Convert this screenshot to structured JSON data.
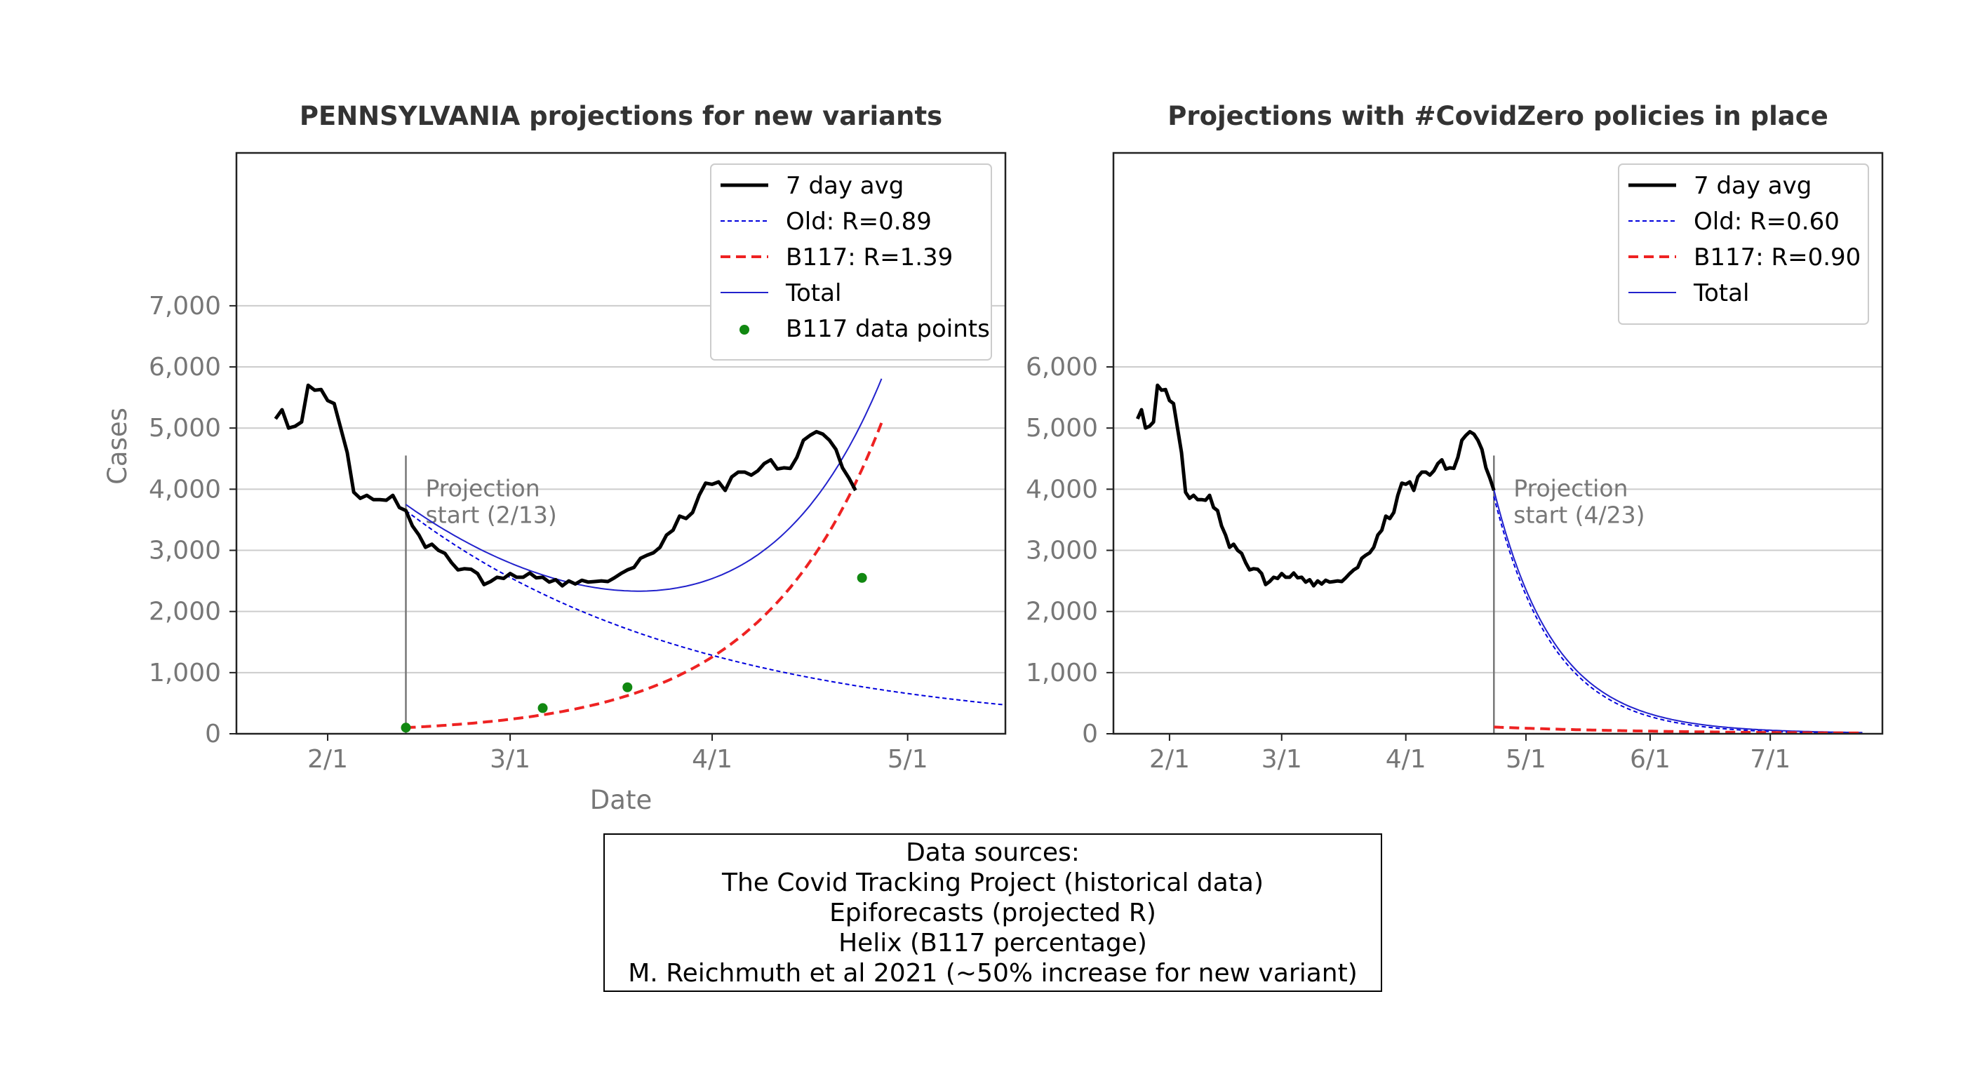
{
  "chart_data": [
    {
      "type": "line",
      "title": "PENNSYLVANIA projections for new variants",
      "xlabel": "Date",
      "ylabel": "Cases",
      "x_ticks": [
        "2/1",
        "3/1",
        "4/1",
        "5/1"
      ],
      "x_tick_values": [
        "2021-02-01",
        "2021-03-01",
        "2021-04-01",
        "2021-05-01"
      ],
      "xlim": [
        "2021-01-18",
        "2021-05-16"
      ],
      "y_ticks": [
        "0",
        "1,000",
        "2,000",
        "3,000",
        "4,000",
        "5,000",
        "6,000",
        "7,000"
      ],
      "y_tick_values": [
        0,
        1000,
        2000,
        3000,
        4000,
        5000,
        6000,
        7000
      ],
      "ylim": [
        0,
        9500
      ],
      "grid": "horizontal",
      "legend_position": "top-right",
      "annotation": "Projection\nstart (2/13)",
      "projection_start": "2021-02-13",
      "series": [
        {
          "name": "7 day avg",
          "style": "solid-thick",
          "color": "#000000",
          "x": [
            "2021-01-24",
            "2021-01-25",
            "2021-01-26",
            "2021-01-27",
            "2021-01-28",
            "2021-01-29",
            "2021-01-30",
            "2021-01-31",
            "2021-02-01",
            "2021-02-02",
            "2021-02-03",
            "2021-02-04",
            "2021-02-05",
            "2021-02-06",
            "2021-02-07",
            "2021-02-08",
            "2021-02-09",
            "2021-02-10",
            "2021-02-11",
            "2021-02-12",
            "2021-02-13",
            "2021-02-14",
            "2021-02-15",
            "2021-02-16",
            "2021-02-17",
            "2021-02-18",
            "2021-02-19",
            "2021-02-20",
            "2021-02-21",
            "2021-02-22",
            "2021-02-23",
            "2021-02-24",
            "2021-02-25",
            "2021-02-26",
            "2021-02-27",
            "2021-02-28",
            "2021-03-01",
            "2021-03-02",
            "2021-03-03",
            "2021-03-04",
            "2021-03-05",
            "2021-03-06",
            "2021-03-07",
            "2021-03-08",
            "2021-03-09",
            "2021-03-10",
            "2021-03-11",
            "2021-03-12",
            "2021-03-13",
            "2021-03-14",
            "2021-03-15",
            "2021-03-16",
            "2021-03-17",
            "2021-03-18",
            "2021-03-19",
            "2021-03-20",
            "2021-03-21",
            "2021-03-22",
            "2021-03-23",
            "2021-03-24",
            "2021-03-25",
            "2021-03-26",
            "2021-03-27",
            "2021-03-28",
            "2021-03-29",
            "2021-03-30",
            "2021-03-31",
            "2021-04-01",
            "2021-04-02",
            "2021-04-03",
            "2021-04-04",
            "2021-04-05",
            "2021-04-06",
            "2021-04-07",
            "2021-04-08",
            "2021-04-09",
            "2021-04-10",
            "2021-04-11",
            "2021-04-12",
            "2021-04-13",
            "2021-04-14",
            "2021-04-15",
            "2021-04-16",
            "2021-04-17",
            "2021-04-18",
            "2021-04-19",
            "2021-04-20",
            "2021-04-21",
            "2021-04-22",
            "2021-04-23"
          ],
          "y": [
            5150,
            5300,
            5000,
            5030,
            5100,
            5700,
            5620,
            5630,
            5450,
            5400,
            5000,
            4600,
            3950,
            3850,
            3900,
            3830,
            3830,
            3820,
            3900,
            3700,
            3650,
            3400,
            3250,
            3050,
            3100,
            3000,
            2950,
            2800,
            2680,
            2700,
            2690,
            2620,
            2440,
            2490,
            2560,
            2540,
            2620,
            2560,
            2560,
            2630,
            2550,
            2560,
            2480,
            2520,
            2420,
            2500,
            2450,
            2510,
            2480,
            2490,
            2500,
            2490,
            2550,
            2620,
            2680,
            2720,
            2870,
            2920,
            2960,
            3050,
            3250,
            3330,
            3560,
            3520,
            3620,
            3900,
            4100,
            4080,
            4120,
            3980,
            4200,
            4280,
            4280,
            4230,
            4300,
            4420,
            4480,
            4330,
            4350,
            4340,
            4520,
            4800,
            4880,
            4940,
            4900,
            4800,
            4650,
            4350,
            4180,
            3980
          ]
        },
        {
          "name": "Old: R=0.89",
          "style": "dotted-thin",
          "color": "#0000dd",
          "x_start": "2021-02-13",
          "x_end": "2021-05-16",
          "y_start": 3650,
          "y_end": 480,
          "daily_factor": 0.978
        },
        {
          "name": "B117: R=1.39",
          "style": "dashed-thick",
          "color": "#ee2222",
          "x_start": "2021-02-13",
          "x_end": "2021-04-27",
          "y_start": 100,
          "y_end": 5100,
          "daily_factor": 1.0553
        },
        {
          "name": "Total",
          "style": "solid-thin",
          "color": "#2222cc",
          "description_from_components": true,
          "x_start": "2021-02-13",
          "x_end": "2021-04-27"
        },
        {
          "name": "B117 data points",
          "style": "markers",
          "color": "#118811",
          "x": [
            "2021-02-13",
            "2021-03-06",
            "2021-03-19",
            "2021-04-24"
          ],
          "y": [
            100,
            420,
            760,
            2550
          ]
        }
      ]
    },
    {
      "type": "line",
      "title": "Projections with #CovidZero policies in place",
      "xlabel": "",
      "ylabel": "",
      "x_ticks": [
        "2/1",
        "3/1",
        "4/1",
        "5/1",
        "6/1",
        "7/1"
      ],
      "x_tick_values": [
        "2021-02-01",
        "2021-03-01",
        "2021-04-01",
        "2021-05-01",
        "2021-06-01",
        "2021-07-01"
      ],
      "xlim": [
        "2021-01-18",
        "2021-07-29"
      ],
      "y_ticks": [
        "0",
        "1,000",
        "2,000",
        "3,000",
        "4,000",
        "5,000",
        "6,000"
      ],
      "y_tick_values": [
        0,
        1000,
        2000,
        3000,
        4000,
        5000,
        6000
      ],
      "ylim": [
        0,
        9500
      ],
      "grid": "horizontal",
      "legend_position": "top-right",
      "annotation": "Projection\nstart (4/23)",
      "projection_start": "2021-04-23",
      "series": [
        {
          "name": "7 day avg",
          "style": "solid-thick",
          "color": "#000000",
          "same_as_first_chart": true
        },
        {
          "name": "Old: R=0.60",
          "style": "dotted-thin",
          "color": "#0000dd",
          "x_start": "2021-04-23",
          "x_end": "2021-07-24",
          "y_start": 3880,
          "y_end": 0,
          "daily_factor": 0.935
        },
        {
          "name": "B117: R=0.90",
          "style": "dashed-thick",
          "color": "#ee2222",
          "x_start": "2021-04-23",
          "x_end": "2021-07-24",
          "y_start": 110,
          "y_end": 12,
          "daily_factor": 0.976
        },
        {
          "name": "Total",
          "style": "solid-thin",
          "color": "#2222cc",
          "description_from_components": true,
          "x_start": "2021-04-23",
          "x_end": "2021-07-24"
        }
      ]
    }
  ],
  "sources": {
    "heading": "Data sources:",
    "lines": [
      "The Covid Tracking Project (historical data)",
      "Epiforecasts (projected R)",
      "Helix (B117 percentage)",
      "M. Reichmuth et al 2021 (~50% increase for new variant)"
    ]
  }
}
